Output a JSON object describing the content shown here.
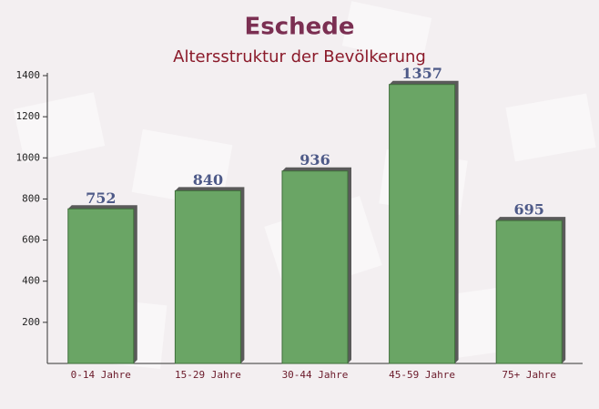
{
  "chart_data": {
    "type": "bar",
    "title": "Eschede",
    "subtitle": "Altersstruktur der Bevölkerung",
    "categories": [
      "0-14 Jahre",
      "15-29 Jahre",
      "30-44 Jahre",
      "45-59 Jahre",
      "75+ Jahre"
    ],
    "values": [
      752,
      840,
      936,
      1357,
      695
    ],
    "color": "#6aa565",
    "ylim": [
      0,
      1400
    ],
    "yticks": [
      200,
      400,
      600,
      800,
      1000,
      1200,
      1400
    ]
  }
}
